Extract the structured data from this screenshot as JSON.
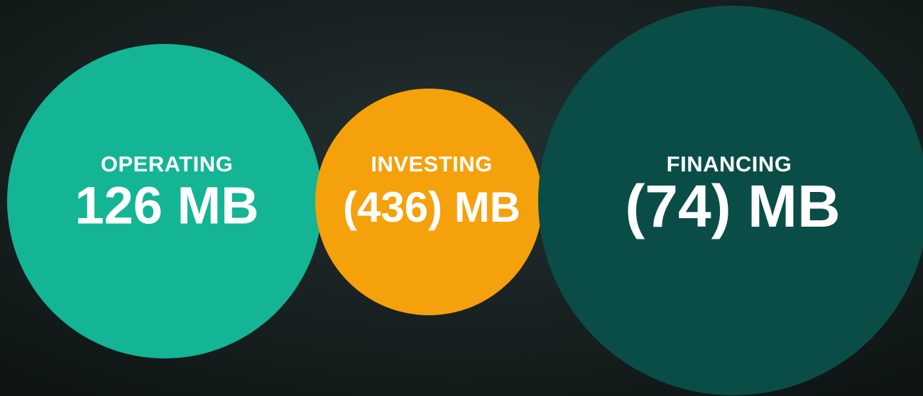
{
  "items": [
    {
      "label": "OPERATING",
      "value": "126 MB"
    },
    {
      "label": "INVESTING",
      "value": "(436) MB"
    },
    {
      "label": "FINANCING",
      "value": "(74) MB"
    }
  ]
}
